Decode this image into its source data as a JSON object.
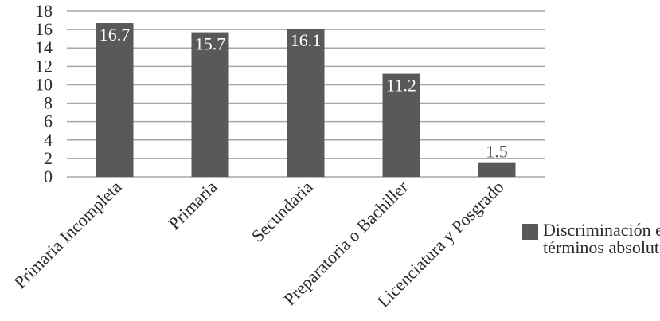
{
  "chart_data": {
    "type": "bar",
    "categories": [
      "Primaria Incompleta",
      "Primaria",
      "Secundaria",
      "Preparatoria o Bachiller",
      "Licenciatura y Posgrado"
    ],
    "series": [
      {
        "name": "Discriminación en términos absolutos",
        "values": [
          16.7,
          15.7,
          16.1,
          11.2,
          1.5
        ],
        "labels": [
          "16.7",
          "15.7",
          "16.1",
          "11.2",
          "1.5"
        ]
      }
    ],
    "yticks": [
      0,
      2,
      4,
      6,
      8,
      10,
      12,
      14,
      16,
      18
    ],
    "ylim": [
      0,
      18
    ],
    "grid": true,
    "legend_position": "right",
    "bar_color": "#595959",
    "grid_color": "#a6a6a6",
    "text_color": "#2a2a2a"
  }
}
